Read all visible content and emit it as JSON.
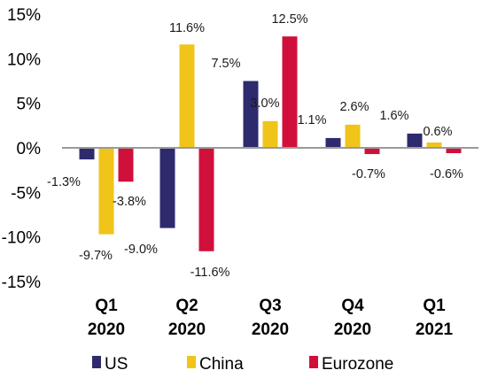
{
  "chart_data": {
    "type": "bar",
    "categories": [
      {
        "line1": "Q1",
        "line2": "2020"
      },
      {
        "line1": "Q2",
        "line2": "2020"
      },
      {
        "line1": "Q3",
        "line2": "2020"
      },
      {
        "line1": "Q4",
        "line2": "2020"
      },
      {
        "line1": "Q1",
        "line2": "2021"
      }
    ],
    "series": [
      {
        "name": "US",
        "color": "#2e2a6e",
        "values": [
          -1.3,
          -9.0,
          7.5,
          1.1,
          1.6
        ],
        "labels": [
          "-1.3%",
          "-9.0%",
          "7.5%",
          "1.1%",
          "1.6%"
        ]
      },
      {
        "name": "China",
        "color": "#f0c419",
        "values": [
          -9.7,
          11.6,
          3.0,
          2.6,
          0.6
        ],
        "labels": [
          "-9.7%",
          "11.6%",
          "3.0%",
          "2.6%",
          "0.6%"
        ]
      },
      {
        "name": "Eurozone",
        "color": "#d0103a",
        "values": [
          -3.8,
          -11.6,
          12.5,
          -0.7,
          -0.6
        ],
        "labels": [
          "-3.8%",
          "-11.6%",
          "12.5%",
          "-0.7%",
          "-0.6%"
        ]
      }
    ],
    "ylim": [
      -15,
      15
    ],
    "yticks": [
      {
        "value": 15,
        "label": "15%"
      },
      {
        "value": 10,
        "label": "10%"
      },
      {
        "value": 5,
        "label": "5%"
      },
      {
        "value": 0,
        "label": "0%"
      },
      {
        "value": -5,
        "label": "-5%"
      },
      {
        "value": -10,
        "label": "-10%"
      },
      {
        "value": -15,
        "label": "-15%"
      }
    ],
    "grid": false,
    "legend": "bottom"
  }
}
